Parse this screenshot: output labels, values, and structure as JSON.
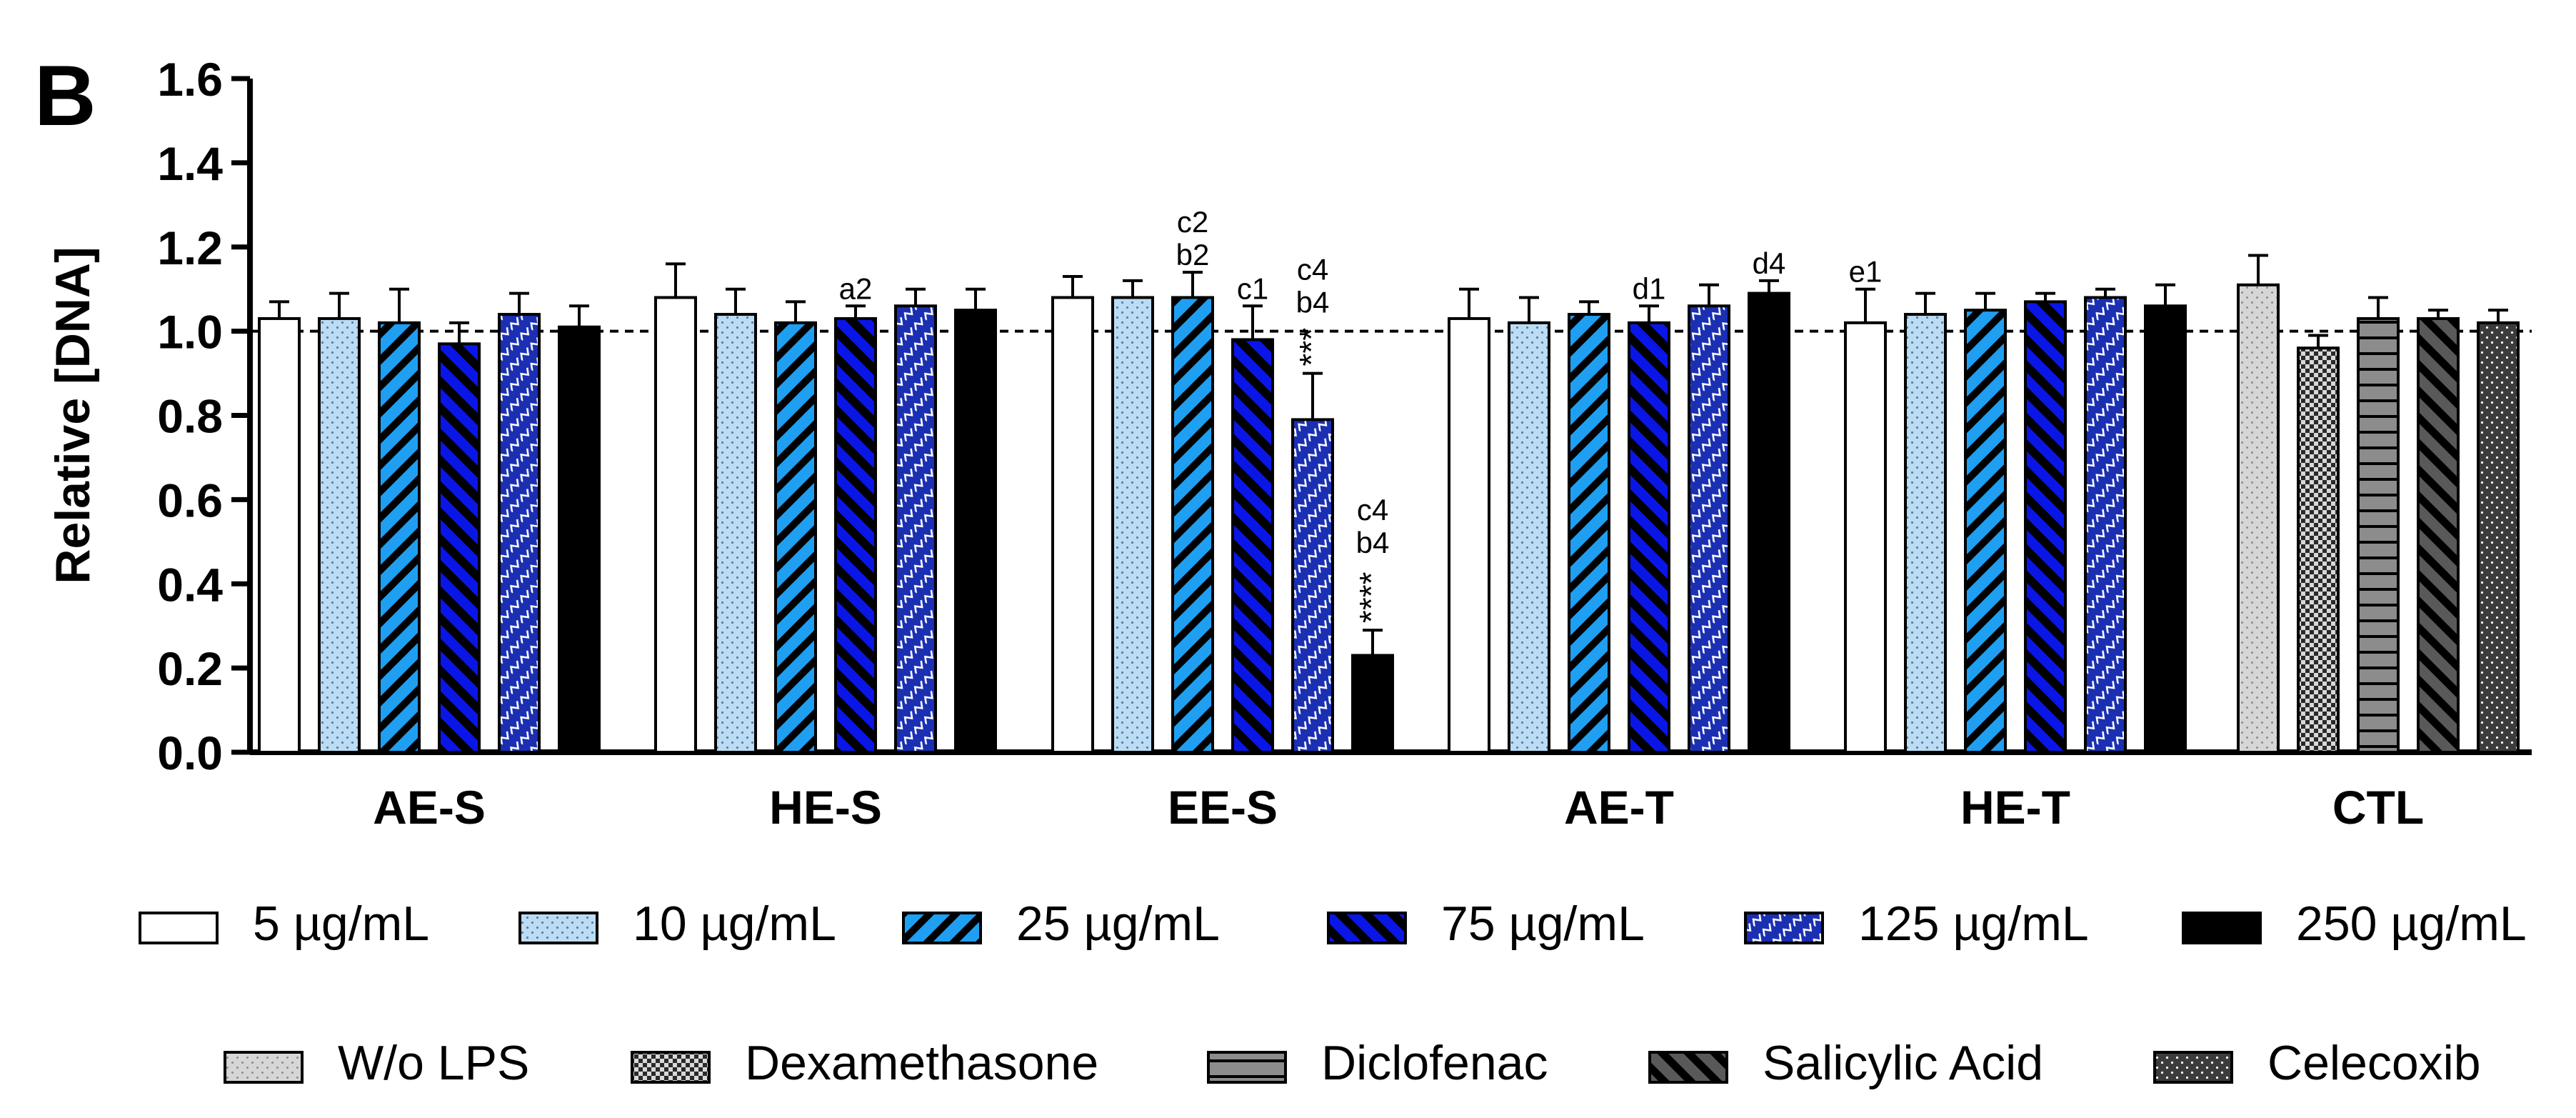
{
  "panel_label": "B",
  "chart_data": {
    "type": "bar",
    "title": "",
    "xlabel": "",
    "ylabel": "Relative [DNA]",
    "ylim": [
      0,
      1.6
    ],
    "yticks": [
      "0.0",
      "0.2",
      "0.4",
      "0.6",
      "0.8",
      "1.0",
      "1.2",
      "1.4",
      "1.6"
    ],
    "reference_line": 1.0,
    "groups": [
      {
        "label": "AE-S",
        "bars": [
          {
            "series": "5 µg/mL",
            "value": 1.03,
            "error": 0.04
          },
          {
            "series": "10 µg/mL",
            "value": 1.03,
            "error": 0.06
          },
          {
            "series": "25 µg/mL",
            "value": 1.02,
            "error": 0.08
          },
          {
            "series": "75 µg/mL",
            "value": 0.97,
            "error": 0.05
          },
          {
            "series": "125 µg/mL",
            "value": 1.04,
            "error": 0.05
          },
          {
            "series": "250 µg/mL",
            "value": 1.01,
            "error": 0.05
          }
        ]
      },
      {
        "label": "HE-S",
        "bars": [
          {
            "series": "5 µg/mL",
            "value": 1.08,
            "error": 0.08
          },
          {
            "series": "10 µg/mL",
            "value": 1.04,
            "error": 0.06
          },
          {
            "series": "25 µg/mL",
            "value": 1.02,
            "error": 0.05
          },
          {
            "series": "75 µg/mL",
            "value": 1.03,
            "error": 0.03,
            "annotation": [
              "a2"
            ]
          },
          {
            "series": "125 µg/mL",
            "value": 1.06,
            "error": 0.04
          },
          {
            "series": "250 µg/mL",
            "value": 1.05,
            "error": 0.05
          }
        ]
      },
      {
        "label": "EE-S",
        "bars": [
          {
            "series": "5 µg/mL",
            "value": 1.08,
            "error": 0.05
          },
          {
            "series": "10 µg/mL",
            "value": 1.08,
            "error": 0.04
          },
          {
            "series": "25 µg/mL",
            "value": 1.08,
            "error": 0.06,
            "annotation": [
              "c2",
              "b2"
            ]
          },
          {
            "series": "75 µg/mL",
            "value": 0.98,
            "error": 0.08,
            "annotation": [
              "c1"
            ]
          },
          {
            "series": "125 µg/mL",
            "value": 0.79,
            "error": 0.11,
            "annotation": [
              "c4",
              "b4",
              "***"
            ]
          },
          {
            "series": "250 µg/mL",
            "value": 0.23,
            "error": 0.06,
            "annotation": [
              "c4",
              "b4",
              "****"
            ]
          }
        ]
      },
      {
        "label": "AE-T",
        "bars": [
          {
            "series": "5 µg/mL",
            "value": 1.03,
            "error": 0.07
          },
          {
            "series": "10 µg/mL",
            "value": 1.02,
            "error": 0.06
          },
          {
            "series": "25 µg/mL",
            "value": 1.04,
            "error": 0.03
          },
          {
            "series": "75 µg/mL",
            "value": 1.02,
            "error": 0.04,
            "annotation": [
              "d1"
            ]
          },
          {
            "series": "125 µg/mL",
            "value": 1.06,
            "error": 0.05
          },
          {
            "series": "250 µg/mL",
            "value": 1.09,
            "error": 0.03,
            "annotation": [
              "d4"
            ]
          }
        ]
      },
      {
        "label": "HE-T",
        "bars": [
          {
            "series": "5 µg/mL",
            "value": 1.02,
            "error": 0.08,
            "annotation": [
              "e1"
            ]
          },
          {
            "series": "10 µg/mL",
            "value": 1.04,
            "error": 0.05
          },
          {
            "series": "25 µg/mL",
            "value": 1.05,
            "error": 0.04
          },
          {
            "series": "75 µg/mL",
            "value": 1.07,
            "error": 0.02
          },
          {
            "series": "125 µg/mL",
            "value": 1.08,
            "error": 0.02
          },
          {
            "series": "250 µg/mL",
            "value": 1.06,
            "error": 0.05
          }
        ]
      },
      {
        "label": "CTL",
        "bars": [
          {
            "series": "W/o LPS",
            "value": 1.11,
            "error": 0.07
          },
          {
            "series": "Dexamethasone",
            "value": 0.96,
            "error": 0.03
          },
          {
            "series": "Diclofenac",
            "value": 1.03,
            "error": 0.05
          },
          {
            "series": "Salicylic Acid",
            "value": 1.03,
            "error": 0.02
          },
          {
            "series": "Celecoxib",
            "value": 1.02,
            "error": 0.03
          }
        ]
      }
    ],
    "legend": [
      [
        {
          "label": "5 µg/mL",
          "pattern": "white"
        },
        {
          "label": "10 µg/mL",
          "pattern": "dots-light"
        },
        {
          "label": "25 µg/mL",
          "pattern": "stripes-cyan"
        },
        {
          "label": "75 µg/mL",
          "pattern": "stripes-blue"
        },
        {
          "label": "125 µg/mL",
          "pattern": "zigzag"
        },
        {
          "label": "250 µg/mL",
          "pattern": "black"
        }
      ],
      [
        {
          "label": "W/o LPS",
          "pattern": "dots-grey"
        },
        {
          "label": "Dexamethasone",
          "pattern": "checker"
        },
        {
          "label": "Diclofenac",
          "pattern": "hstripes"
        },
        {
          "label": "Salicylic Acid",
          "pattern": "stripes-grey"
        },
        {
          "label": "Celecoxib",
          "pattern": "dots-dark"
        }
      ]
    ],
    "colors": {
      "light_blue": "#bcdcf4",
      "cyan": "#1e9ff2",
      "blue": "#0a16e6",
      "navy": "#1a2fb2",
      "black": "#000000",
      "grey_light": "#d6d6d6",
      "grey": "#8c8c8c",
      "grey_dark": "#595959",
      "grey_darker": "#3c3c3c"
    }
  }
}
